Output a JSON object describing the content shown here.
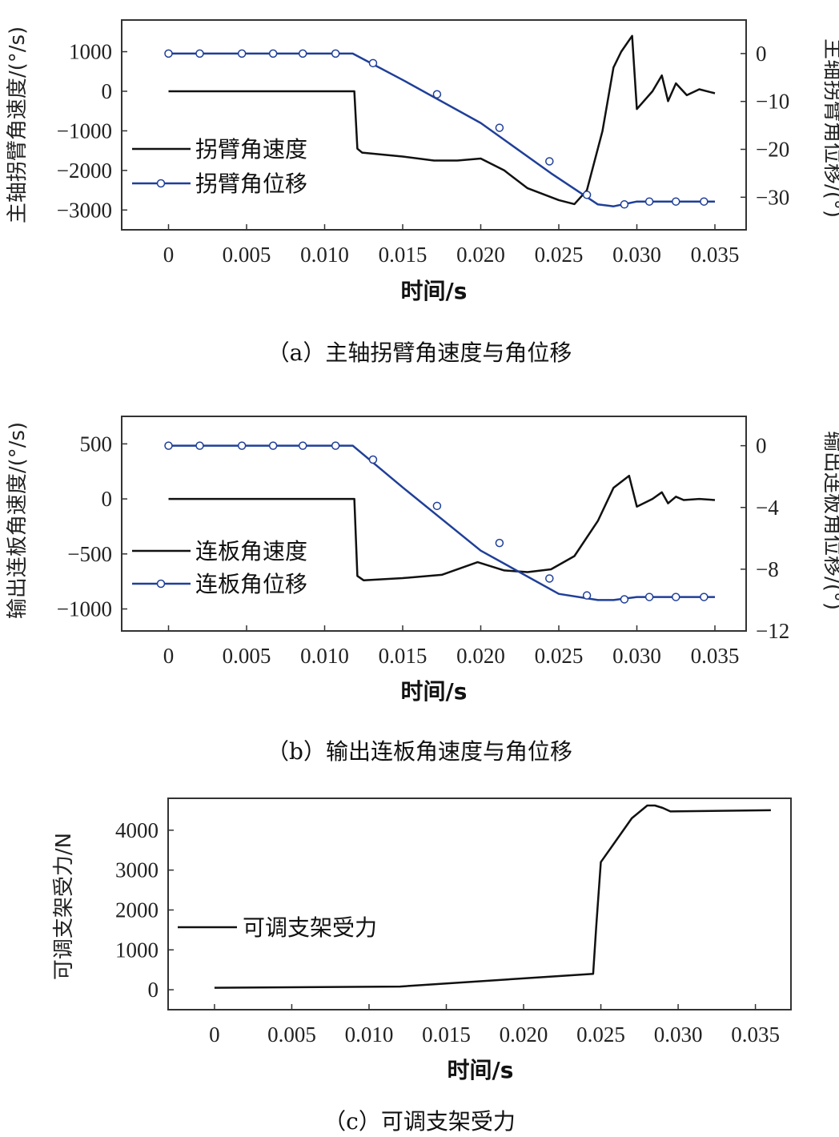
{
  "colors": {
    "velocity": "#111111",
    "displacement": "#1f3f99",
    "marker_fill": "#ffffff",
    "axis": "#333333"
  },
  "chart_data": [
    {
      "id": "a",
      "type": "line",
      "caption": "（a）主轴拐臂角速度与角位移",
      "xlabel": "时间/s",
      "ylabel_left": "主轴拐臂角速度/(°/s)",
      "ylabel_right": "主轴拐臂角位移/(°)",
      "xlim": [
        -0.003,
        0.037
      ],
      "ylim_left": [
        -3500,
        1800
      ],
      "ylim_right": [
        -36.8,
        7.0
      ],
      "xticks": [
        0,
        0.005,
        0.01,
        0.015,
        0.02,
        0.025,
        0.03,
        0.035
      ],
      "xtick_labels": [
        "0",
        "0.005",
        "0.010",
        "0.015",
        "0.020",
        "0.025",
        "0.030",
        "0.035"
      ],
      "yticks_left": [
        1000,
        0,
        -1000,
        -2000,
        -3000
      ],
      "ytick_labels_left": [
        "1000",
        "0",
        "−1000",
        "−2000",
        "−3000"
      ],
      "yticks_right": [
        0,
        -10,
        -20,
        -30
      ],
      "ytick_labels_right": [
        "0",
        "−10",
        "−20",
        "−30"
      ],
      "legend": [
        "拐臂角速度",
        "拐臂角位移"
      ],
      "series": [
        {
          "name": "拐臂角速度",
          "axis": "left",
          "marker": "none",
          "x": [
            0,
            0.0119,
            0.0121,
            0.0124,
            0.015,
            0.017,
            0.0185,
            0.02,
            0.0215,
            0.023,
            0.025,
            0.026,
            0.0268,
            0.0278,
            0.0285,
            0.029,
            0.0297,
            0.03,
            0.031,
            0.0316,
            0.032,
            0.0325,
            0.0332,
            0.034,
            0.035
          ],
          "y": [
            0,
            0,
            -1450,
            -1550,
            -1650,
            -1750,
            -1750,
            -1700,
            -2000,
            -2450,
            -2750,
            -2850,
            -2500,
            -1000,
            600,
            1000,
            1400,
            -450,
            0,
            400,
            -250,
            200,
            -100,
            50,
            -50
          ]
        },
        {
          "name": "拐臂角位移",
          "axis": "right",
          "marker": "none",
          "x": [
            0,
            0.0118,
            0.015,
            0.02,
            0.0245,
            0.0275,
            0.0285,
            0.03,
            0.035
          ],
          "y": [
            0,
            0,
            -5.5,
            -14.5,
            -25.0,
            -31.5,
            -31.9,
            -30.9,
            -30.9
          ]
        },
        {
          "name": "拐臂角位移 markers",
          "axis": "right",
          "marker": "circle",
          "x": [
            0,
            0.002,
            0.0047,
            0.0067,
            0.0086,
            0.0107,
            0.0131,
            0.0172,
            0.0212,
            0.0244,
            0.0268,
            0.0292,
            0.0308,
            0.0325,
            0.0343
          ],
          "y": [
            0,
            0,
            0,
            0,
            0,
            0,
            -2.0,
            -8.5,
            -15.5,
            -22.5,
            -29.5,
            -31.5,
            -30.9,
            -30.9,
            -30.9
          ]
        }
      ]
    },
    {
      "id": "b",
      "type": "line",
      "caption": "（b）输出连板角速度与角位移",
      "xlabel": "时间/s",
      "ylabel_left": "输出连板角速度/(°/s)",
      "ylabel_right": "输出连板角位移/(°)",
      "xlim": [
        -0.003,
        0.037
      ],
      "ylim_left": [
        -1200,
        750
      ],
      "ylim_right": [
        -12,
        1.9
      ],
      "xticks": [
        0,
        0.005,
        0.01,
        0.015,
        0.02,
        0.025,
        0.03,
        0.035
      ],
      "xtick_labels": [
        "0",
        "0.005",
        "0.010",
        "0.015",
        "0.020",
        "0.025",
        "0.030",
        "0.035"
      ],
      "yticks_left": [
        500,
        0,
        -500,
        -1000
      ],
      "ytick_labels_left": [
        "500",
        "0",
        "−500",
        "−1000"
      ],
      "yticks_right": [
        0,
        -4,
        -8,
        -12
      ],
      "ytick_labels_right": [
        "0",
        "−4",
        "−8",
        "−12"
      ],
      "legend": [
        "连板角速度",
        "连板角位移"
      ],
      "series": [
        {
          "name": "连板角速度",
          "axis": "left",
          "marker": "none",
          "x": [
            0,
            0.0119,
            0.0121,
            0.0125,
            0.015,
            0.0175,
            0.0198,
            0.0215,
            0.023,
            0.0245,
            0.026,
            0.0275,
            0.0285,
            0.0295,
            0.03,
            0.031,
            0.0316,
            0.032,
            0.0325,
            0.033,
            0.034,
            0.035
          ],
          "y": [
            0,
            0,
            -700,
            -740,
            -720,
            -690,
            -575,
            -650,
            -665,
            -640,
            -520,
            -200,
            100,
            210,
            -70,
            0,
            60,
            -40,
            20,
            -10,
            0,
            -10
          ]
        },
        {
          "name": "连板角位移",
          "axis": "right",
          "marker": "none",
          "x": [
            0,
            0.0118,
            0.015,
            0.02,
            0.025,
            0.0275,
            0.0285,
            0.03,
            0.035
          ],
          "y": [
            0,
            0,
            -2.7,
            -6.8,
            -9.6,
            -10.0,
            -10.0,
            -9.8,
            -9.8
          ]
        },
        {
          "name": "连板角位移 markers",
          "axis": "right",
          "marker": "circle",
          "x": [
            0,
            0.002,
            0.0047,
            0.0067,
            0.0086,
            0.0107,
            0.0131,
            0.0172,
            0.0212,
            0.0244,
            0.0268,
            0.0292,
            0.0308,
            0.0325,
            0.0343
          ],
          "y": [
            0,
            0,
            0,
            0,
            0,
            0,
            -0.9,
            -3.9,
            -6.3,
            -8.6,
            -9.7,
            -9.95,
            -9.8,
            -9.8,
            -9.8
          ]
        }
      ]
    },
    {
      "id": "c",
      "type": "line",
      "caption": "（c）可调支架受力",
      "xlabel": "时间/s",
      "ylabel_left": "可调支架受力/N",
      "xlim": [
        -0.003,
        0.0373
      ],
      "ylim_left": [
        -500,
        4800
      ],
      "xticks": [
        0,
        0.005,
        0.01,
        0.015,
        0.02,
        0.025,
        0.03,
        0.035
      ],
      "xtick_labels": [
        "0",
        "0.005",
        "0.010",
        "0.015",
        "0.020",
        "0.025",
        "0.030",
        "0.035"
      ],
      "yticks_left": [
        4000,
        3000,
        2000,
        1000,
        0
      ],
      "ytick_labels_left": [
        "4000",
        "3000",
        "2000",
        "1000",
        "0"
      ],
      "legend": [
        "可调支架受力"
      ],
      "series": [
        {
          "name": "可调支架受力",
          "axis": "left",
          "marker": "none",
          "x": [
            0,
            0.012,
            0.0245,
            0.0247,
            0.025,
            0.027,
            0.028,
            0.0285,
            0.029,
            0.0295,
            0.036
          ],
          "y": [
            50,
            80,
            400,
            1600,
            3200,
            4300,
            4620,
            4620,
            4560,
            4470,
            4500
          ]
        }
      ]
    }
  ]
}
